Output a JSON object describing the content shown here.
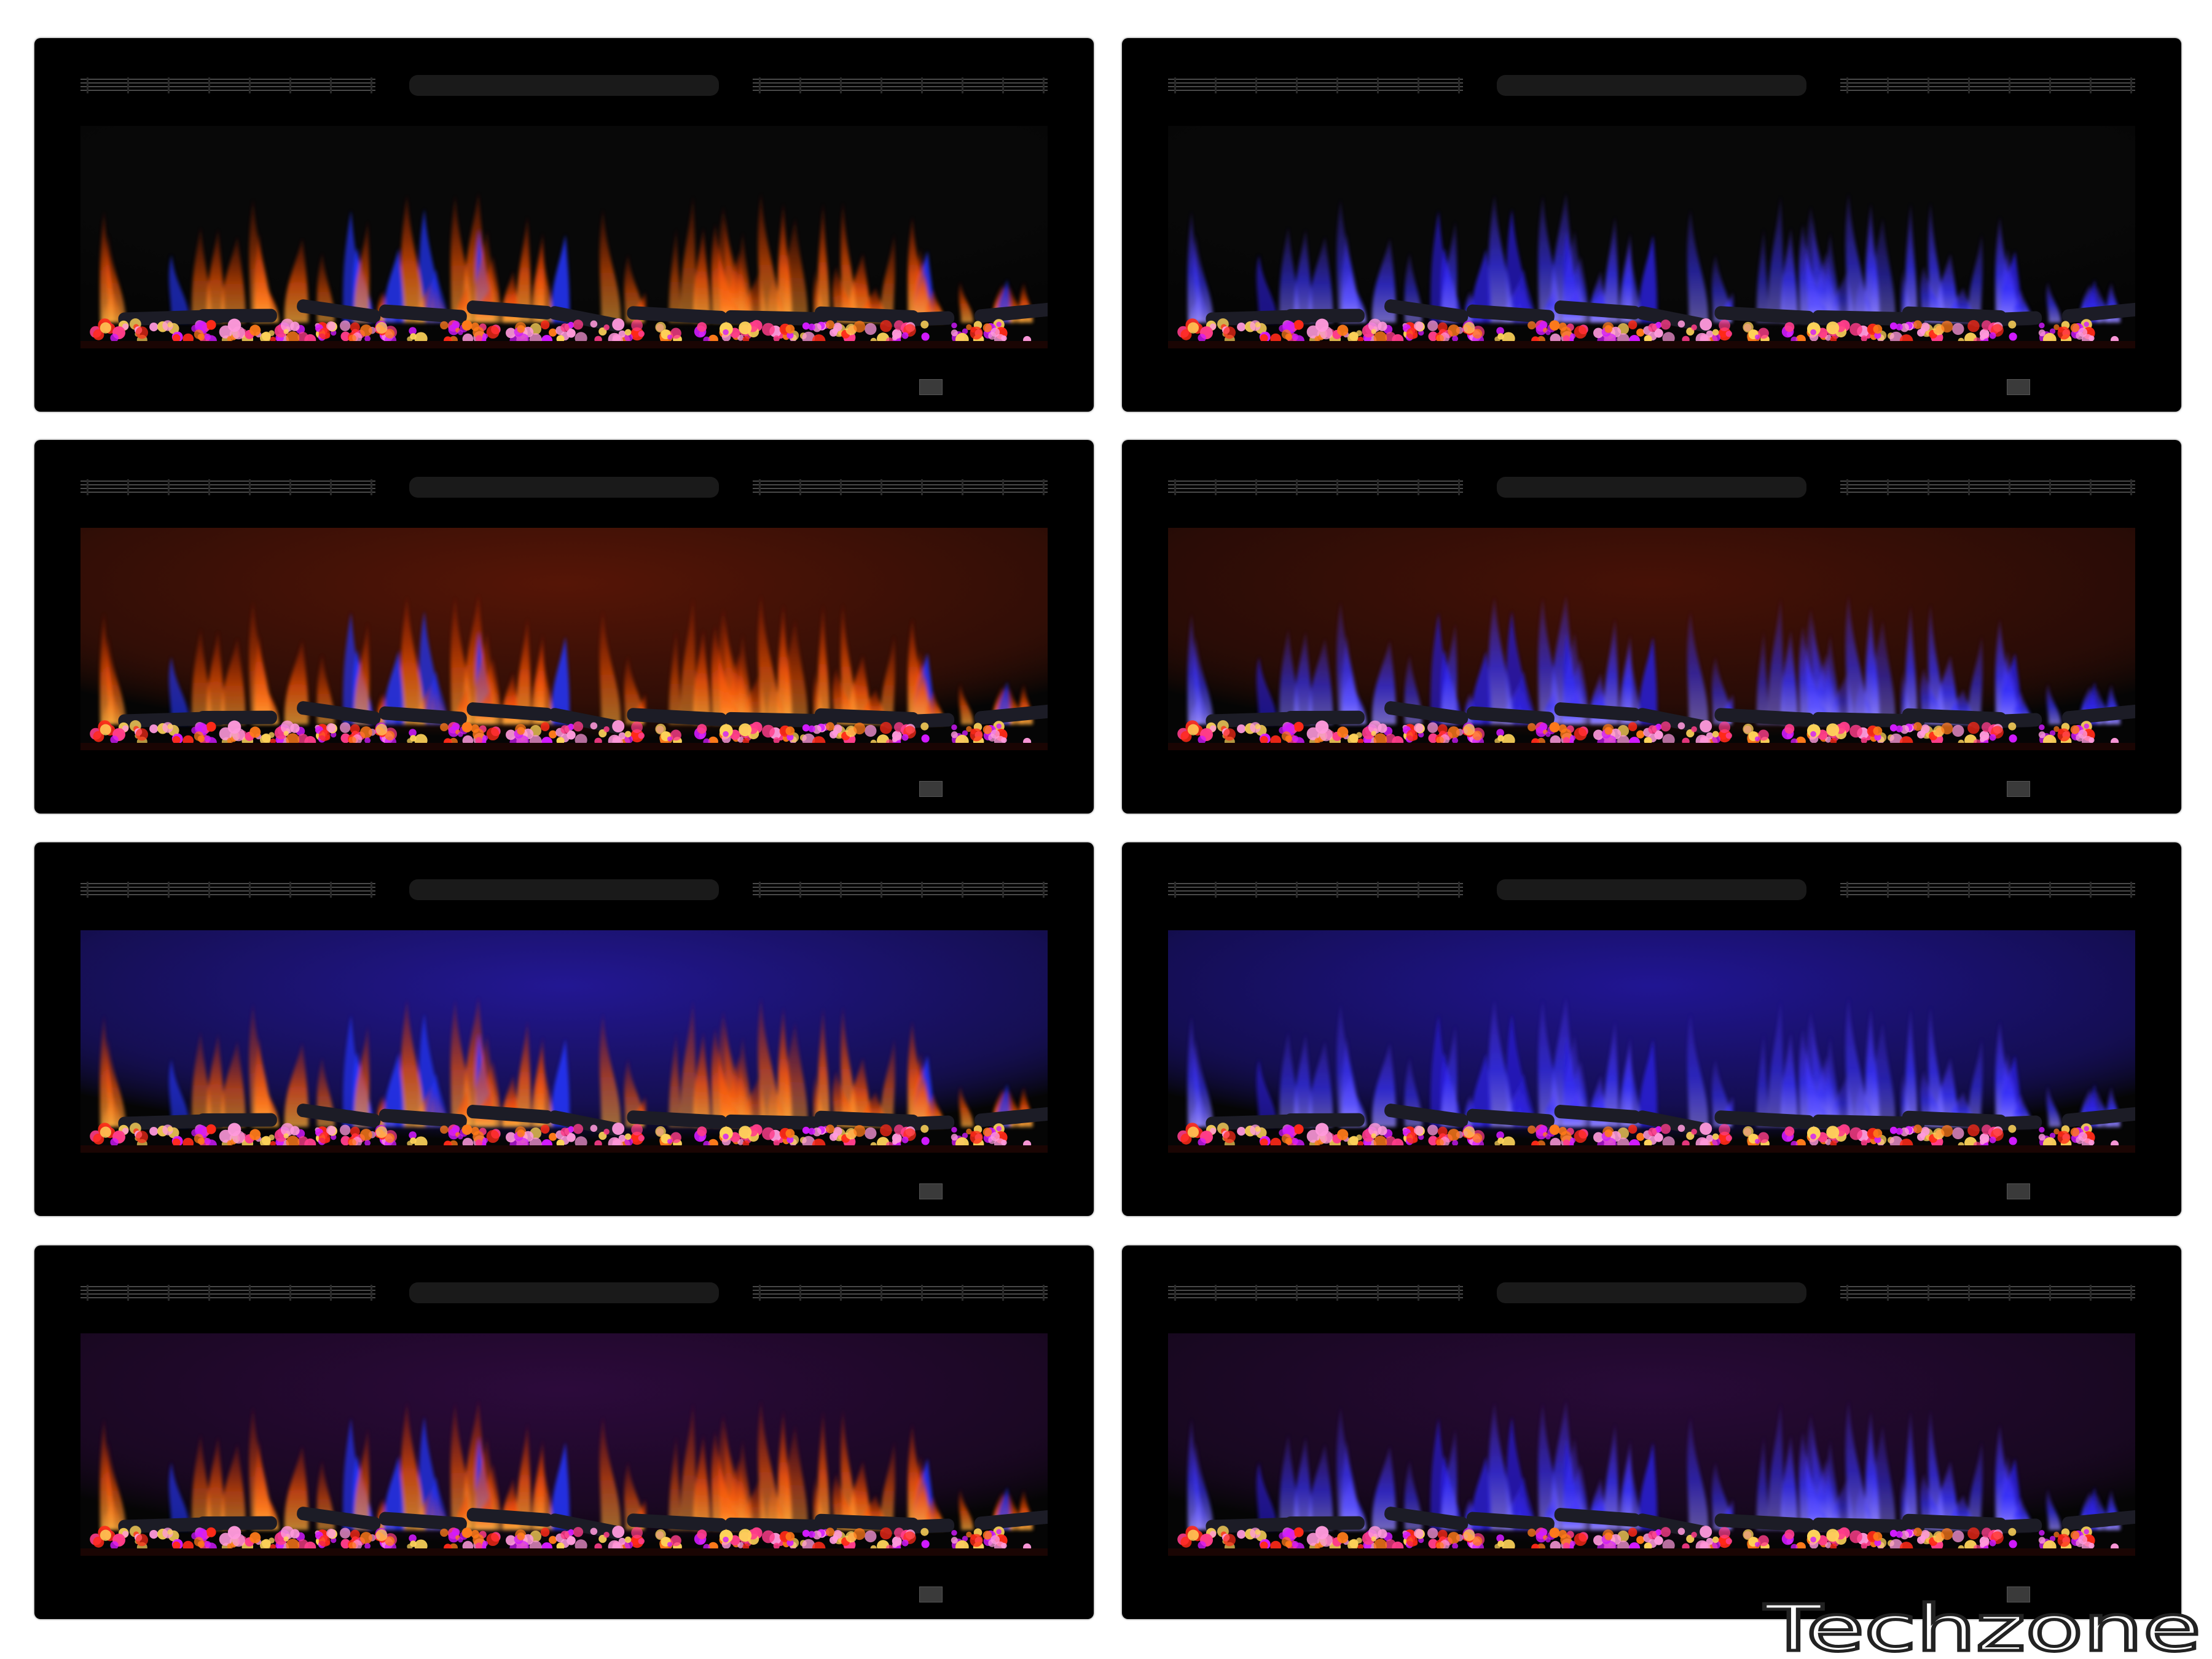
{
  "watermark": {
    "text": "Techzone",
    "stroke_color": "#222222",
    "fill_color": "#ffffff"
  },
  "panels": [
    {
      "name": "orange-flame-dark-backlight",
      "flame": "orange",
      "backlight": null
    },
    {
      "name": "blue-flame-dark-backlight",
      "flame": "blue",
      "backlight": null
    },
    {
      "name": "orange-flame-red-backlight",
      "flame": "orange",
      "backlight": "#5a1606"
    },
    {
      "name": "blue-flame-red-backlight",
      "flame": "blue",
      "backlight": "#4a1206"
    },
    {
      "name": "orange-flame-blue-backlight",
      "flame": "orange",
      "backlight": "#24189a"
    },
    {
      "name": "blue-flame-blue-backlight",
      "flame": "blue",
      "backlight": "#22169a"
    },
    {
      "name": "orange-flame-purple-backlight",
      "flame": "orange",
      "backlight": "#2e0a3e"
    },
    {
      "name": "blue-flame-purple-backlight",
      "flame": "blue",
      "backlight": "#2a0a3a"
    }
  ],
  "flame_colors": {
    "orange": {
      "primary": "#ff5a0a",
      "secondary": "#d42c06",
      "accent": "#2436ff",
      "core": "#ffb040"
    },
    "blue": {
      "primary": "#3a34ff",
      "secondary": "#5a3cff",
      "accent": "#2a1fd8",
      "core": "#9a8cff"
    }
  },
  "ember_colors": [
    "#ff2a18",
    "#ff7a1a",
    "#ff9adc",
    "#d21aff",
    "#ffd45a",
    "#ff3d8a"
  ]
}
